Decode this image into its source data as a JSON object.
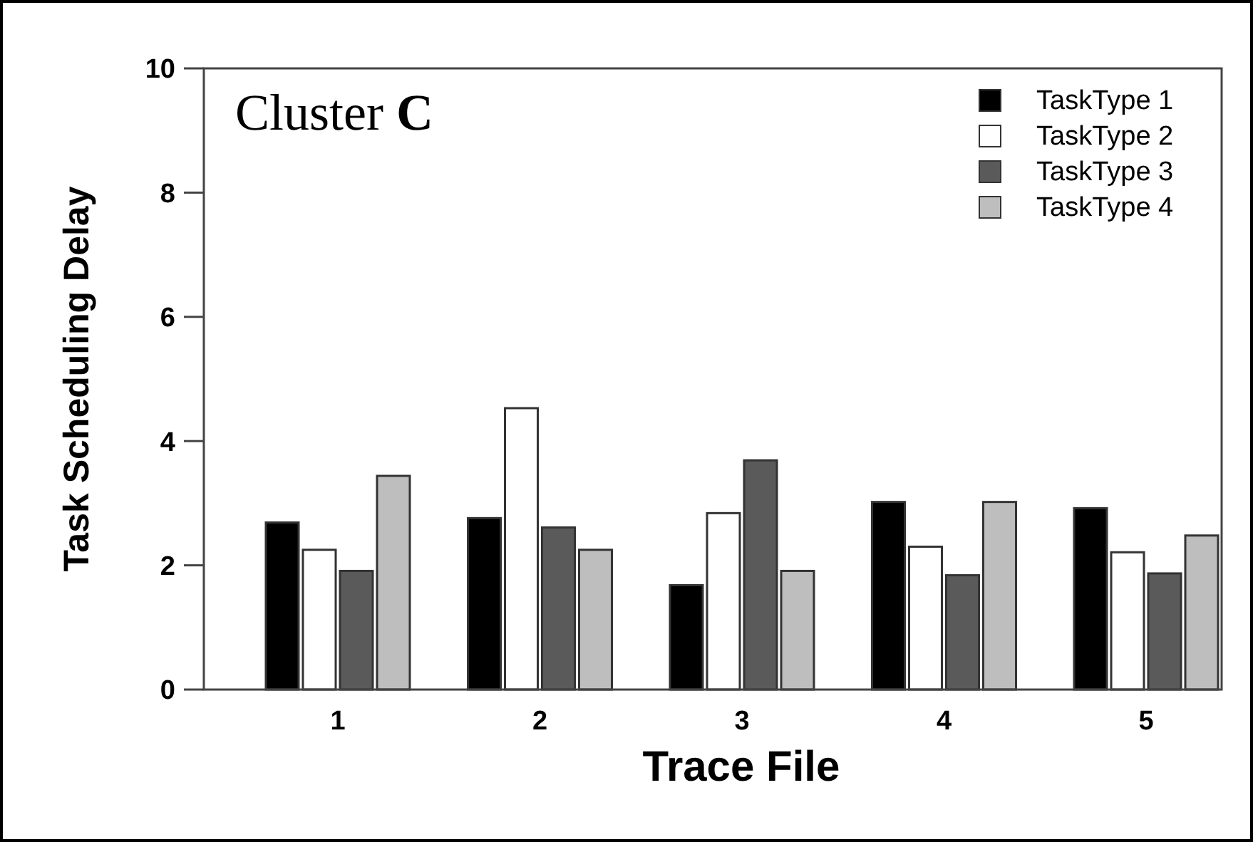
{
  "chart_data": {
    "type": "bar",
    "xlabel": "Trace File",
    "ylabel": "Task Scheduling Delay",
    "annotations": [
      "Cluster C"
    ],
    "categories": [
      "1",
      "2",
      "3",
      "4",
      "5"
    ],
    "series": [
      {
        "name": "TaskType 1",
        "color": "#000000",
        "values": [
          2.69,
          2.76,
          1.68,
          3.02,
          2.92
        ]
      },
      {
        "name": "TaskType 2",
        "color": "#ffffff",
        "values": [
          2.25,
          4.53,
          2.84,
          2.3,
          2.21
        ]
      },
      {
        "name": "TaskType 3",
        "color": "#5a5a5a",
        "values": [
          1.91,
          2.61,
          3.69,
          1.84,
          1.87
        ]
      },
      {
        "name": "TaskType 4",
        "color": "#bebebe",
        "values": [
          3.44,
          2.25,
          1.91,
          3.02,
          2.48
        ]
      }
    ],
    "ylim": [
      0,
      10
    ],
    "yticks": [
      0,
      2,
      4,
      6,
      8,
      10
    ],
    "grid": false,
    "legend": "top right"
  }
}
